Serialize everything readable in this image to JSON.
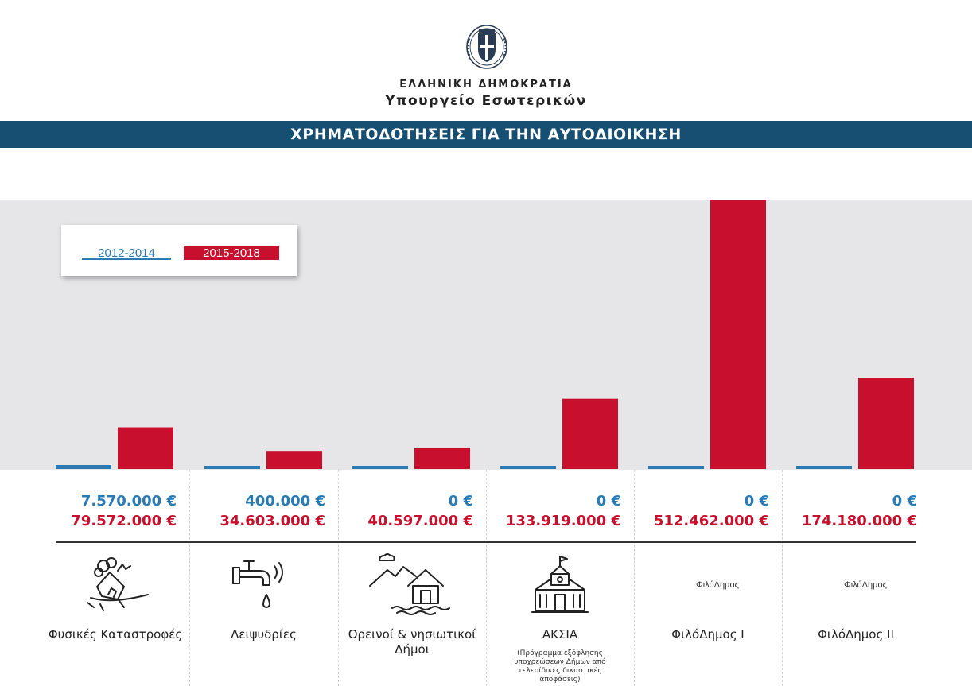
{
  "header": {
    "republic": "ΕΛΛΗΝΙΚΗ ΔΗΜΟΚΡΑΤΙΑ",
    "ministry": "Υπουργείο Εσωτερικών",
    "banner_title": "ΧΡΗΜΑΤΟΔΟΤΗΣΕΙΣ ΓΙΑ ΤΗΝ ΑΥΤΟΔΙΟΙΚΗΣΗ"
  },
  "colors": {
    "blue": "#2a7ab3",
    "red": "#c8102e",
    "banner": "#174f73",
    "plot_bg": "#e6e6e8"
  },
  "chart_data": {
    "type": "bar",
    "title": "ΧΡΗΜΑΤΟΔΟΤΗΣΕΙΣ ΓΙΑ ΤΗΝ ΑΥΤΟΔΙΟΙΚΗΣΗ",
    "categories": [
      "Φυσικές Καταστροφές",
      "Λειψυδρίες",
      "Ορεινοί & νησιωτικοί Δήμοι",
      "ΑΚΣΙΑ",
      "ΦιλόΔημος Ι",
      "ΦιλόΔημος ΙΙ"
    ],
    "series": [
      {
        "name": "2012-2014",
        "color": "#2a7ab3",
        "values": [
          7570000,
          400000,
          0,
          0,
          0,
          0
        ]
      },
      {
        "name": "2015-2018",
        "color": "#c8102e",
        "values": [
          79572000,
          34603000,
          40597000,
          133919000,
          512462000,
          174180000
        ]
      }
    ],
    "ylim": [
      0,
      512462000
    ],
    "legend": "top-left",
    "grid": false
  },
  "legend": [
    {
      "label": "2012-2014"
    },
    {
      "label": "2015-2018"
    }
  ],
  "columns": [
    {
      "blue_value": "7.570.000 €",
      "red_value": "79.572.000 €",
      "label": "Φυσικές Καταστροφές",
      "icon": "landslide-house-icon"
    },
    {
      "blue_value": "400.000 €",
      "red_value": "34.603.000 €",
      "label": "Λειψυδρίες",
      "icon": "water-tap-icon"
    },
    {
      "blue_value": "0 €",
      "red_value": "40.597.000 €",
      "label": "Ορεινοί & νησιωτικοί Δήμοι",
      "icon": "mountain-island-house-icon"
    },
    {
      "blue_value": "0 €",
      "red_value": "133.919.000 €",
      "label": "ΑΚΣΙΑ",
      "sublabel": "(Πρόγραμμα εξόφλησης υποχρεώσεων Δήμων από τελεσίδικες δικαστικές αποφάσεις)",
      "icon": "town-hall-icon"
    },
    {
      "blue_value": "0 €",
      "red_value": "512.462.000 €",
      "label": "ΦιλόΔημος Ι",
      "icon": "filodimos-logo",
      "logo_text": "ΦιλόΔημος"
    },
    {
      "blue_value": "0 €",
      "red_value": "174.180.000 €",
      "label": "ΦιλόΔημος ΙΙ",
      "icon": "filodimos-logo",
      "logo_text": "ΦιλόΔημος"
    }
  ]
}
